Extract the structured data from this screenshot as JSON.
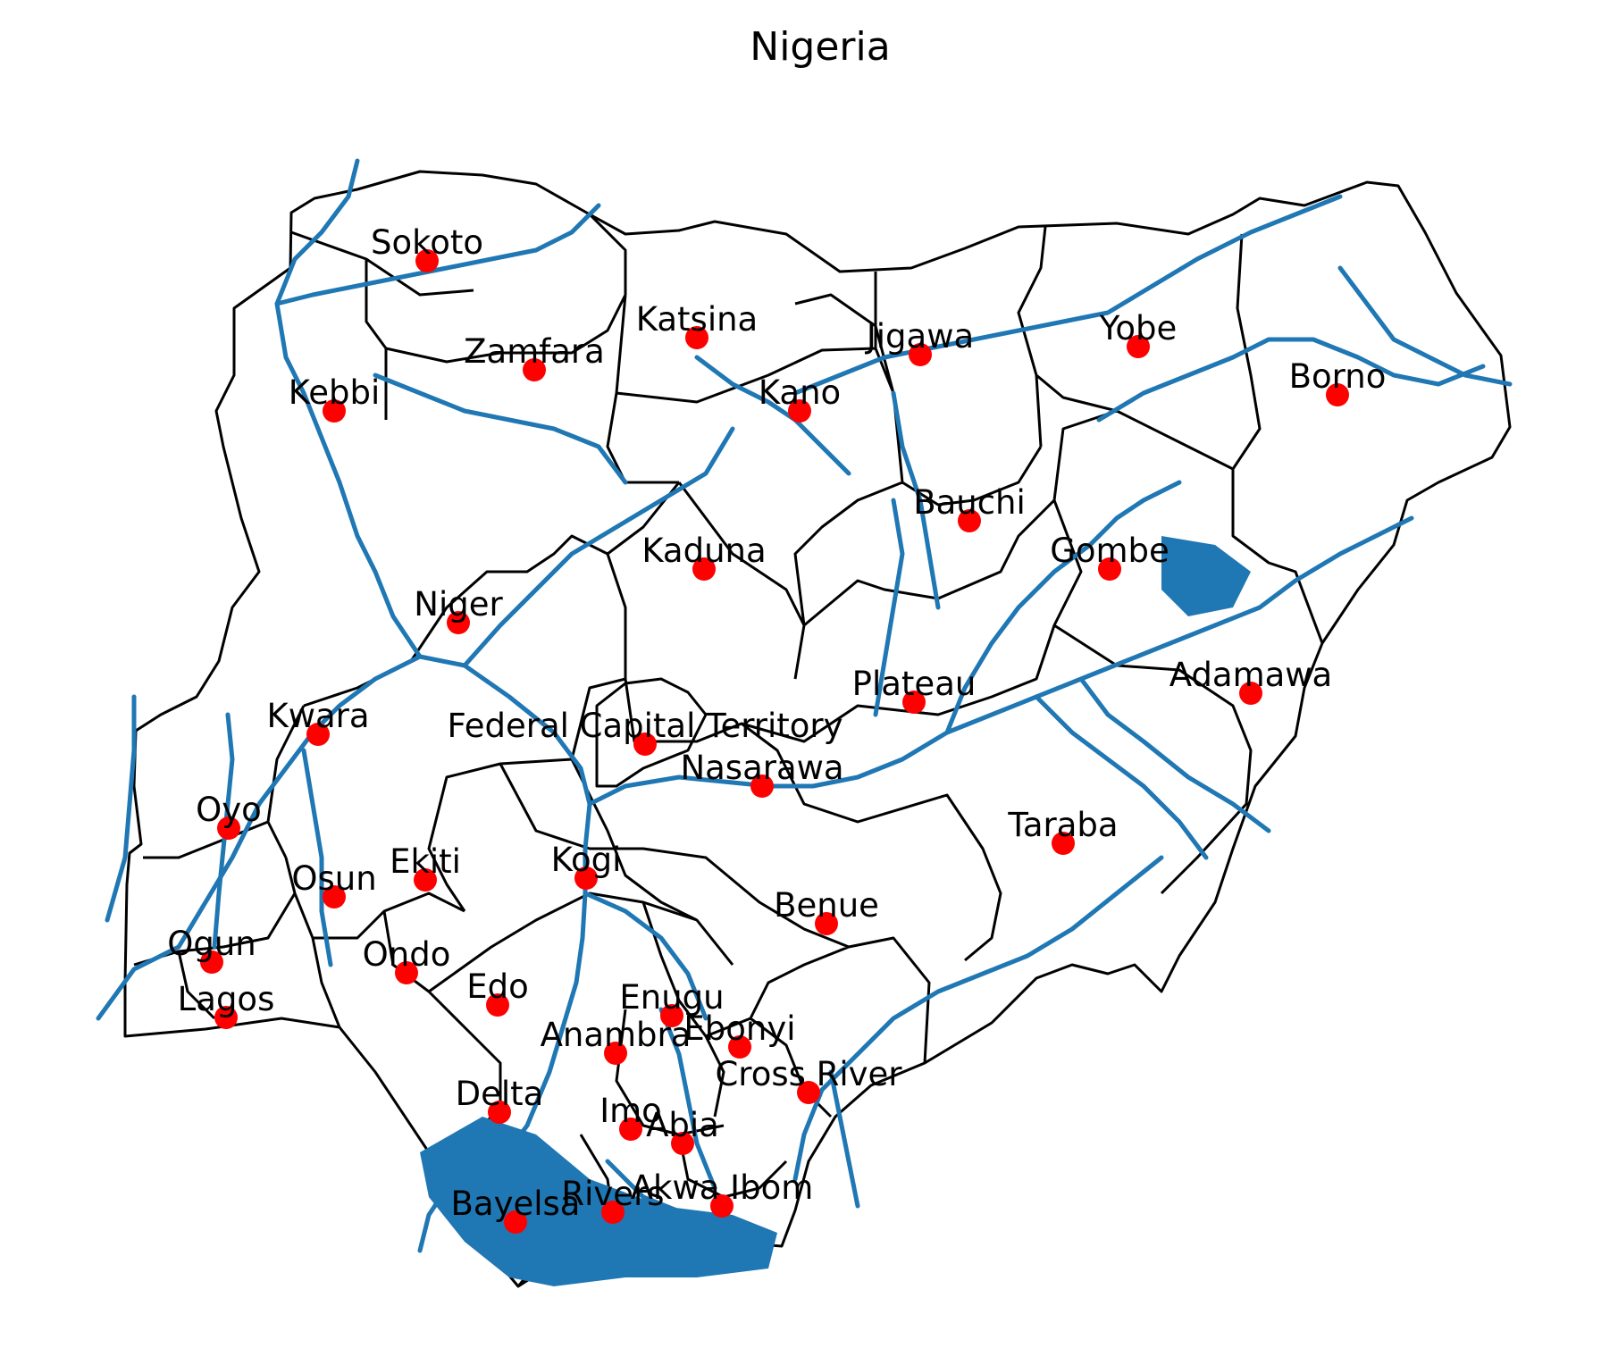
{
  "title": "Nigeria",
  "colors": {
    "river": "#1f77b4",
    "marker": "#ff0000",
    "boundary": "#000000",
    "background": "#ffffff"
  },
  "states": [
    {
      "name": "Sokoto"
    },
    {
      "name": "Katsina"
    },
    {
      "name": "Zamfara"
    },
    {
      "name": "Jigawa"
    },
    {
      "name": "Yobe"
    },
    {
      "name": "Borno"
    },
    {
      "name": "Kebbi"
    },
    {
      "name": "Kano"
    },
    {
      "name": "Bauchi"
    },
    {
      "name": "Kaduna"
    },
    {
      "name": "Gombe"
    },
    {
      "name": "Niger"
    },
    {
      "name": "Plateau"
    },
    {
      "name": "Adamawa"
    },
    {
      "name": "Kwara"
    },
    {
      "name": "Federal Capital Territory"
    },
    {
      "name": "Nasarawa"
    },
    {
      "name": "Oyo"
    },
    {
      "name": "Taraba"
    },
    {
      "name": "Ekiti"
    },
    {
      "name": "Kogi"
    },
    {
      "name": "Osun"
    },
    {
      "name": "Benue"
    },
    {
      "name": "Ogun"
    },
    {
      "name": "Ondo"
    },
    {
      "name": "Edo"
    },
    {
      "name": "Lagos"
    },
    {
      "name": "Enugu"
    },
    {
      "name": "Ebonyi"
    },
    {
      "name": "Anambra"
    },
    {
      "name": "Cross River"
    },
    {
      "name": "Delta"
    },
    {
      "name": "Imo"
    },
    {
      "name": "Abia"
    },
    {
      "name": "Akwa Ibom"
    },
    {
      "name": "Rivers"
    },
    {
      "name": "Bayelsa"
    }
  ]
}
